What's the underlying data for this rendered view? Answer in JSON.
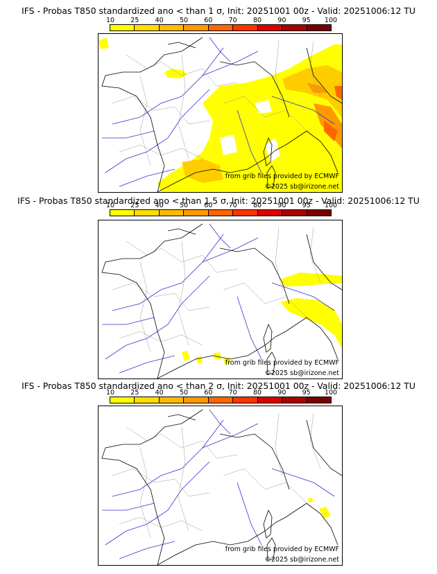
{
  "colors": [
    "#ffff00",
    "#ffdd00",
    "#ffbb00",
    "#ff9900",
    "#ff6600",
    "#ff3300",
    "#dd0000",
    "#aa0000",
    "#770000"
  ],
  "tick_labels": [
    "10",
    "25",
    "40",
    "50",
    "60",
    "70",
    "80",
    "90",
    "95",
    "100"
  ],
  "panels": [
    {
      "title": "IFS - Probas T850  standardized ano < than 1 σ, Init: 20251001 00z - Valid: 20251006:12 TU",
      "threshold": "1 σ",
      "source": "from grib files provided by ECMWF",
      "copyright": "©2025 sb@irizone.net"
    },
    {
      "title": "IFS - Probas T850  standardized ano < than 1.5 σ, Init: 20251001 00z - Valid: 20251006:12 TU",
      "threshold": "1.5 σ",
      "source": "from grib files provided by ECMWF",
      "copyright": "©2025 sb@irizone.net"
    },
    {
      "title": "IFS - Probas T850  standardized ano < than 2 σ, Init: 20251001 00z - Valid: 20251006:12 TU",
      "threshold": "2 σ",
      "source": "from grib files provided by ECMWF",
      "copyright": "©2025 sb@irizone.net"
    }
  ]
}
